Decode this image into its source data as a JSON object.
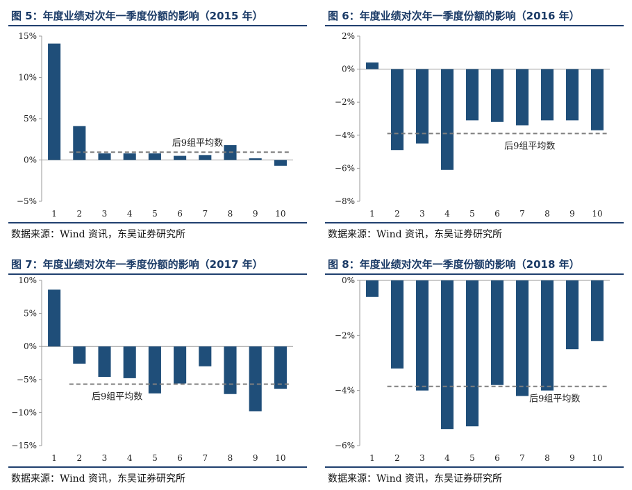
{
  "source_text": "数据来源：Wind 资讯，东吴证券研究所",
  "chart_data": [
    {
      "type": "bar",
      "title": "图 5：年度业绩对次年一季度份额的影响（2015 年）",
      "categories": [
        "1",
        "2",
        "3",
        "4",
        "5",
        "6",
        "7",
        "8",
        "9",
        "10"
      ],
      "values": [
        14.1,
        4.1,
        0.8,
        0.8,
        0.8,
        0.5,
        0.6,
        1.8,
        0.2,
        -0.7
      ],
      "average": 0.95,
      "average_label": "后9组平均数",
      "yticks": [
        -5,
        0,
        5,
        10,
        15
      ],
      "ytick_labels": [
        "−5%",
        "0%",
        "5%",
        "10%",
        "15%"
      ],
      "ylim": [
        -5,
        15
      ],
      "color": "#1f4e79"
    },
    {
      "type": "bar",
      "title": "图 6：年度业绩对次年一季度份额的影响（2016 年）",
      "categories": [
        "1",
        "2",
        "3",
        "4",
        "5",
        "6",
        "7",
        "8",
        "9",
        "10"
      ],
      "values": [
        0.4,
        -4.9,
        -4.5,
        -6.1,
        -3.1,
        -3.2,
        -3.4,
        -3.1,
        -3.1,
        -3.7
      ],
      "average": -3.9,
      "average_label": "后9组平均数",
      "yticks": [
        -8,
        -6,
        -4,
        -2,
        0,
        2
      ],
      "ytick_labels": [
        "−8%",
        "−6%",
        "−4%",
        "−2%",
        "0%",
        "2%"
      ],
      "ylim": [
        -8,
        2
      ],
      "color": "#1f4e79"
    },
    {
      "type": "bar",
      "title": "图 7：年度业绩对次年一季度份额的影响（2017 年）",
      "categories": [
        "1",
        "2",
        "3",
        "4",
        "5",
        "6",
        "7",
        "8",
        "9",
        "10"
      ],
      "values": [
        8.6,
        -2.6,
        -4.6,
        -4.8,
        -7.1,
        -5.6,
        -3.0,
        -7.2,
        -9.8,
        -6.4
      ],
      "average": -5.7,
      "average_label": "后9组平均数",
      "yticks": [
        -15,
        -10,
        -5,
        0,
        5,
        10
      ],
      "ytick_labels": [
        "−15%",
        "−10%",
        "−5%",
        "0%",
        "5%",
        "10%"
      ],
      "ylim": [
        -15,
        10
      ],
      "color": "#1f4e79"
    },
    {
      "type": "bar",
      "title": "图 8：年度业绩对次年一季度份额的影响（2018 年）",
      "categories": [
        "1",
        "2",
        "3",
        "4",
        "5",
        "6",
        "7",
        "8",
        "9",
        "10"
      ],
      "values": [
        -0.6,
        -3.2,
        -4.0,
        -5.4,
        -5.3,
        -3.8,
        -4.2,
        -4.0,
        -2.5,
        -2.2
      ],
      "average": -3.85,
      "average_label": "后9组平均数",
      "yticks": [
        -6,
        -4,
        -2,
        0
      ],
      "ytick_labels": [
        "−6%",
        "−4%",
        "−2%",
        "0%"
      ],
      "ylim": [
        -6,
        0
      ],
      "color": "#1f4e79"
    }
  ]
}
